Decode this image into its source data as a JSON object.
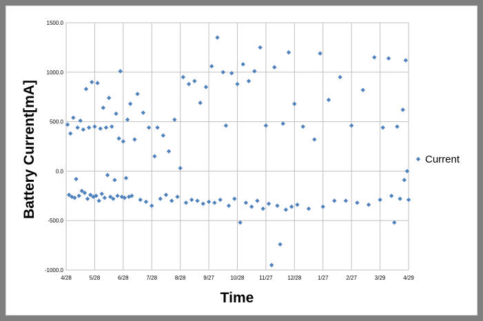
{
  "chart_data": {
    "type": "scatter",
    "title": "",
    "xlabel": "Time",
    "ylabel": "Battery Current[mA]",
    "ylim": [
      -1000,
      1500
    ],
    "y_ticks": [
      -1000,
      -500,
      0,
      500,
      1000,
      1500
    ],
    "y_tick_labels": [
      "-1000.0",
      "-500.0",
      "0.0",
      "500.0",
      "1000.0",
      "1500.0"
    ],
    "x_tick_labels": [
      "4/28",
      "5/28",
      "6/28",
      "7/28",
      "8/28",
      "9/27",
      "10/28",
      "11/27",
      "12/28",
      "1/27",
      "2/27",
      "3/29",
      "4/29"
    ],
    "x_unit": "months since 4/28",
    "xlim": [
      0,
      12
    ],
    "grid": true,
    "legend_position": "right",
    "marker": "diamond",
    "series": [
      {
        "name": "Current",
        "color": "#4f81bd",
        "points": [
          [
            0.05,
            470
          ],
          [
            0.1,
            -240
          ],
          [
            0.15,
            380
          ],
          [
            0.2,
            -260
          ],
          [
            0.25,
            540
          ],
          [
            0.3,
            -270
          ],
          [
            0.35,
            -80
          ],
          [
            0.4,
            440
          ],
          [
            0.45,
            -250
          ],
          [
            0.5,
            510
          ],
          [
            0.55,
            -200
          ],
          [
            0.6,
            420
          ],
          [
            0.65,
            -220
          ],
          [
            0.7,
            830
          ],
          [
            0.75,
            -280
          ],
          [
            0.8,
            440
          ],
          [
            0.85,
            -240
          ],
          [
            0.9,
            900
          ],
          [
            0.95,
            -260
          ],
          [
            1.0,
            450
          ],
          [
            1.05,
            -250
          ],
          [
            1.1,
            890
          ],
          [
            1.15,
            -300
          ],
          [
            1.2,
            430
          ],
          [
            1.25,
            -230
          ],
          [
            1.3,
            640
          ],
          [
            1.35,
            -270
          ],
          [
            1.4,
            440
          ],
          [
            1.45,
            -40
          ],
          [
            1.5,
            740
          ],
          [
            1.55,
            -260
          ],
          [
            1.6,
            450
          ],
          [
            1.65,
            -280
          ],
          [
            1.7,
            -90
          ],
          [
            1.75,
            580
          ],
          [
            1.8,
            -250
          ],
          [
            1.85,
            330
          ],
          [
            1.9,
            1010
          ],
          [
            1.95,
            -260
          ],
          [
            2.0,
            300
          ],
          [
            2.05,
            -270
          ],
          [
            2.1,
            -70
          ],
          [
            2.15,
            520
          ],
          [
            2.2,
            -260
          ],
          [
            2.25,
            680
          ],
          [
            2.3,
            -250
          ],
          [
            2.4,
            320
          ],
          [
            2.5,
            780
          ],
          [
            2.6,
            -290
          ],
          [
            2.7,
            590
          ],
          [
            2.8,
            -310
          ],
          [
            2.9,
            440
          ],
          [
            3.0,
            -350
          ],
          [
            3.1,
            150
          ],
          [
            3.2,
            440
          ],
          [
            3.3,
            -280
          ],
          [
            3.4,
            360
          ],
          [
            3.5,
            -240
          ],
          [
            3.6,
            200
          ],
          [
            3.7,
            -300
          ],
          [
            3.8,
            520
          ],
          [
            3.9,
            -260
          ],
          [
            4.0,
            30
          ],
          [
            4.1,
            950
          ],
          [
            4.2,
            -320
          ],
          [
            4.3,
            880
          ],
          [
            4.4,
            -290
          ],
          [
            4.5,
            910
          ],
          [
            4.6,
            -300
          ],
          [
            4.7,
            690
          ],
          [
            4.8,
            -330
          ],
          [
            4.9,
            850
          ],
          [
            5.0,
            -310
          ],
          [
            5.1,
            1060
          ],
          [
            5.2,
            -320
          ],
          [
            5.3,
            1350
          ],
          [
            5.4,
            -290
          ],
          [
            5.5,
            1000
          ],
          [
            5.6,
            460
          ],
          [
            5.7,
            -350
          ],
          [
            5.8,
            990
          ],
          [
            5.9,
            -280
          ],
          [
            6.0,
            880
          ],
          [
            6.1,
            -520
          ],
          [
            6.2,
            1080
          ],
          [
            6.3,
            -320
          ],
          [
            6.4,
            910
          ],
          [
            6.5,
            -360
          ],
          [
            6.6,
            1010
          ],
          [
            6.7,
            -300
          ],
          [
            6.8,
            1250
          ],
          [
            6.9,
            -380
          ],
          [
            7.0,
            460
          ],
          [
            7.1,
            -330
          ],
          [
            7.2,
            -950
          ],
          [
            7.3,
            1050
          ],
          [
            7.4,
            -350
          ],
          [
            7.5,
            -740
          ],
          [
            7.6,
            480
          ],
          [
            7.7,
            -390
          ],
          [
            7.8,
            1200
          ],
          [
            7.9,
            -360
          ],
          [
            8.0,
            680
          ],
          [
            8.1,
            -340
          ],
          [
            8.3,
            450
          ],
          [
            8.5,
            -380
          ],
          [
            8.7,
            320
          ],
          [
            8.9,
            1190
          ],
          [
            9.0,
            -360
          ],
          [
            9.2,
            720
          ],
          [
            9.4,
            -300
          ],
          [
            9.6,
            950
          ],
          [
            9.8,
            -300
          ],
          [
            10.0,
            460
          ],
          [
            10.2,
            -320
          ],
          [
            10.4,
            820
          ],
          [
            10.6,
            -340
          ],
          [
            10.8,
            1150
          ],
          [
            11.0,
            -290
          ],
          [
            11.1,
            440
          ],
          [
            11.3,
            1140
          ],
          [
            11.4,
            -250
          ],
          [
            11.5,
            -520
          ],
          [
            11.6,
            450
          ],
          [
            11.7,
            -280
          ],
          [
            11.8,
            620
          ],
          [
            11.9,
            1120
          ],
          [
            11.95,
            0
          ],
          [
            12.0,
            -290
          ],
          [
            11.85,
            -90
          ]
        ]
      }
    ]
  }
}
